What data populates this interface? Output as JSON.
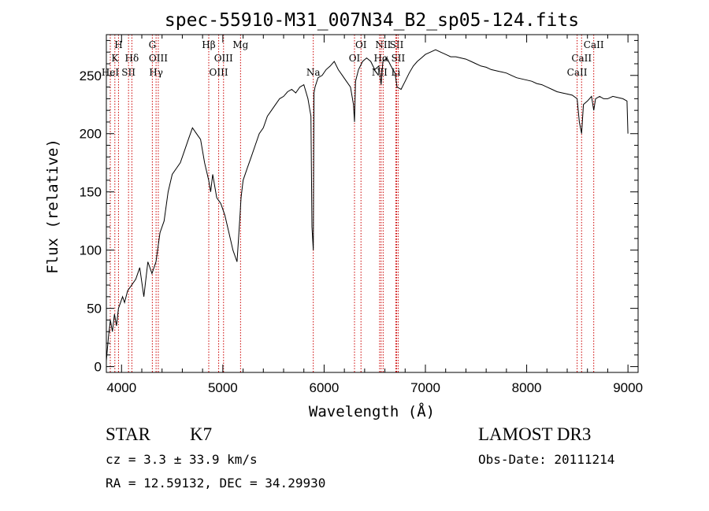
{
  "chart_data": {
    "type": "line",
    "title": "spec-55910-M31_007N34_B2_sp05-124.fits",
    "xlabel": "Wavelength (Å)",
    "ylabel": "Flux (relative)",
    "xlim": [
      3850,
      9100
    ],
    "ylim": [
      -5,
      285
    ],
    "xticks": [
      4000,
      5000,
      6000,
      7000,
      8000,
      9000
    ],
    "yticks": [
      0,
      50,
      100,
      150,
      200,
      250
    ],
    "xtick_labels": [
      "4000",
      "5000",
      "6000",
      "7000",
      "8000",
      "9000"
    ],
    "ytick_labels": [
      "0",
      "50",
      "100",
      "150",
      "200",
      "250"
    ],
    "series": [
      {
        "name": "spectrum",
        "x": [
          3850,
          3870,
          3890,
          3910,
          3930,
          3950,
          3970,
          3990,
          4010,
          4030,
          4060,
          4100,
          4140,
          4180,
          4220,
          4260,
          4300,
          4340,
          4380,
          4420,
          4460,
          4500,
          4540,
          4580,
          4620,
          4660,
          4700,
          4740,
          4780,
          4820,
          4860,
          4880,
          4900,
          4940,
          4980,
          5020,
          5060,
          5100,
          5140,
          5170,
          5180,
          5200,
          5240,
          5280,
          5320,
          5360,
          5400,
          5440,
          5480,
          5520,
          5560,
          5600,
          5640,
          5680,
          5720,
          5760,
          5800,
          5840,
          5870,
          5880,
          5893,
          5900,
          5910,
          5940,
          5980,
          6020,
          6060,
          6100,
          6140,
          6180,
          6220,
          6260,
          6290,
          6300,
          6310,
          6340,
          6380,
          6420,
          6460,
          6500,
          6540,
          6563,
          6580,
          6620,
          6660,
          6700,
          6720,
          6760,
          6800,
          6840,
          6880,
          6920,
          6960,
          7000,
          7050,
          7100,
          7150,
          7200,
          7250,
          7300,
          7350,
          7400,
          7450,
          7500,
          7550,
          7600,
          7650,
          7700,
          7750,
          7800,
          7850,
          7900,
          7950,
          8000,
          8050,
          8100,
          8150,
          8200,
          8250,
          8300,
          8350,
          8400,
          8450,
          8498,
          8520,
          8542,
          8560,
          8600,
          8640,
          8662,
          8680,
          8720,
          8760,
          8800,
          8850,
          8900,
          8950,
          8990,
          9000
        ],
        "y": [
          5,
          25,
          40,
          30,
          45,
          35,
          50,
          55,
          60,
          55,
          65,
          70,
          75,
          85,
          60,
          90,
          80,
          90,
          115,
          125,
          150,
          165,
          170,
          175,
          185,
          195,
          205,
          200,
          195,
          175,
          160,
          150,
          165,
          145,
          140,
          130,
          115,
          100,
          90,
          130,
          145,
          160,
          170,
          180,
          190,
          200,
          205,
          215,
          220,
          225,
          230,
          232,
          236,
          238,
          235,
          240,
          242,
          230,
          215,
          120,
          100,
          235,
          240,
          248,
          250,
          255,
          258,
          262,
          255,
          250,
          245,
          240,
          225,
          210,
          245,
          255,
          262,
          265,
          262,
          255,
          258,
          242,
          262,
          265,
          258,
          252,
          240,
          238,
          245,
          252,
          258,
          262,
          265,
          268,
          270,
          272,
          270,
          268,
          266,
          266,
          265,
          264,
          262,
          260,
          258,
          257,
          255,
          254,
          253,
          252,
          250,
          248,
          247,
          246,
          245,
          243,
          242,
          240,
          238,
          236,
          235,
          234,
          233,
          230,
          210,
          200,
          225,
          228,
          232,
          220,
          230,
          232,
          230,
          230,
          232,
          231,
          230,
          228,
          200
        ]
      }
    ],
    "lines": [
      {
        "label": "H",
        "wave": 3970,
        "row": 0
      },
      {
        "label": "K",
        "wave": 3934,
        "row": 1
      },
      {
        "label": "Hδ",
        "wave": 4102,
        "row": 1
      },
      {
        "label": "HeI",
        "wave": 3889,
        "row": 2
      },
      {
        "label": "SII",
        "wave": 4069,
        "row": 2
      },
      {
        "label": "G",
        "wave": 4304,
        "row": 0
      },
      {
        "label": "OIII",
        "wave": 4363,
        "row": 1
      },
      {
        "label": "Hγ",
        "wave": 4341,
        "row": 2
      },
      {
        "label": "Hβ",
        "wave": 4861,
        "row": 0
      },
      {
        "label": "OIII",
        "wave": 5007,
        "row": 1
      },
      {
        "label": "OIII",
        "wave": 4959,
        "row": 2
      },
      {
        "label": "Mg",
        "wave": 5175,
        "row": 0
      },
      {
        "label": "Na",
        "wave": 5893,
        "row": 2
      },
      {
        "label": "OI",
        "wave": 6364,
        "row": 0
      },
      {
        "label": "OI",
        "wave": 6300,
        "row": 1
      },
      {
        "label": "NII",
        "wave": 6583,
        "row": 0
      },
      {
        "label": "SII",
        "wave": 6716,
        "row": 0
      },
      {
        "label": "Hα",
        "wave": 6563,
        "row": 1
      },
      {
        "label": "SII",
        "wave": 6731,
        "row": 1
      },
      {
        "label": "NII",
        "wave": 6548,
        "row": 2
      },
      {
        "label": "Li",
        "wave": 6708,
        "row": 2
      },
      {
        "label": "CaII",
        "wave": 8662,
        "row": 0
      },
      {
        "label": "CaII",
        "wave": 8542,
        "row": 1
      },
      {
        "label": "CaII",
        "wave": 8498,
        "row": 2
      }
    ],
    "line_color": "#cc0000",
    "curve_color": "#000000"
  },
  "info": {
    "object_class": "STAR",
    "subclass": "K7",
    "redshift": "cz = 3.3 ± 33.9 km/s",
    "coords": "RA =  12.59132, DEC =  34.29930",
    "survey": "LAMOST DR3",
    "obs_date": "Obs-Date: 20111214"
  }
}
